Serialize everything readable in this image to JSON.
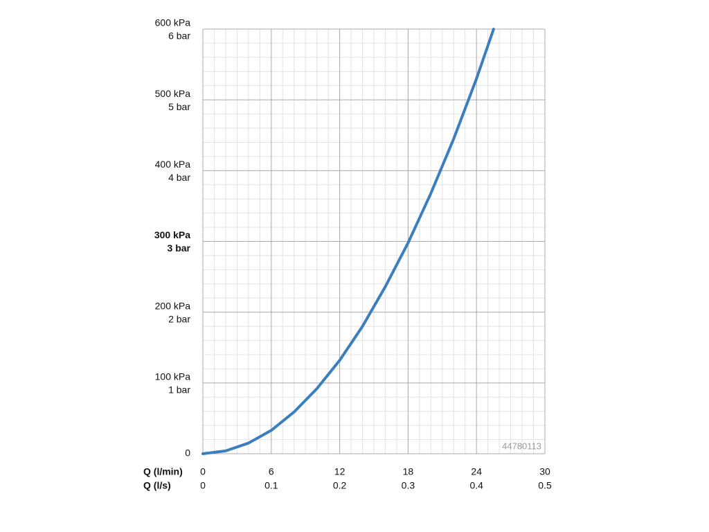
{
  "chart_data": {
    "type": "line",
    "xlabel": "Q (l/min)",
    "x2label": "Q (l/s)",
    "x": [
      0,
      2,
      4,
      6,
      8,
      10,
      12,
      14,
      16,
      18,
      20,
      22,
      24,
      25.5
    ],
    "series": [
      {
        "color": "#3a7ebf",
        "values": [
          0,
          4,
          15,
          33,
          59,
          92,
          132,
          180,
          236,
          298,
          368,
          445,
          530,
          600
        ]
      }
    ],
    "xlim": [
      0,
      30
    ],
    "xticks": [
      0,
      6,
      12,
      18,
      24,
      30
    ],
    "x2lim": [
      0,
      0.5
    ],
    "x2ticks": [
      0,
      0.1,
      0.2,
      0.3,
      0.4,
      0.5
    ],
    "ylim": [
      0,
      600
    ],
    "yticks": [
      0,
      {
        "value": 100,
        "label": "100 kPa"
      },
      {
        "value": 200,
        "label": "200 kPa"
      },
      {
        "value": 300,
        "label": "300 kPa"
      },
      {
        "value": 400,
        "label": "400 kPa"
      },
      {
        "value": 500,
        "label": "500 kPa"
      },
      {
        "value": 600,
        "label": "600 kPa"
      }
    ],
    "ytick_sublabels": [
      null,
      "1 bar",
      "2 bar",
      "3 bar",
      "4 bar",
      "5 bar",
      "6 bar"
    ],
    "emphasized_ytick_index": 3,
    "grid": true,
    "minor_divisions": {
      "x": 6,
      "y": 5
    },
    "watermark": "44780113"
  }
}
